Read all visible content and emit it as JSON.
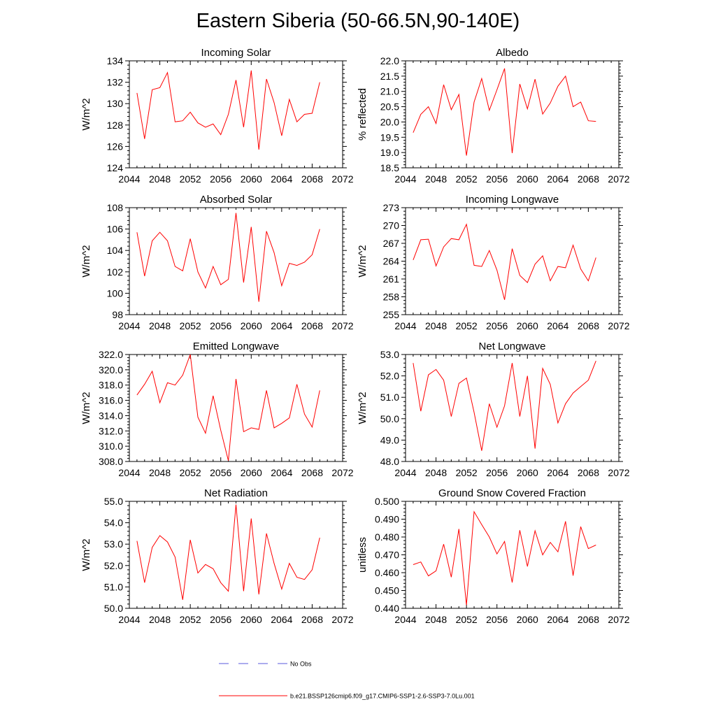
{
  "title": "Eastern Siberia (50-66.5N,90-140E)",
  "legend": {
    "obs_label": "No Obs",
    "obs_color": "#5a5adc",
    "model_label": "b.e21.BSSP126cmip6.f09_g17.CMIP6-SSP1-2.6-SSP3-7.0Lu.001",
    "model_color": "#ff0000"
  },
  "chart_data": [
    {
      "type": "line",
      "title": "Incoming Solar",
      "ylabel": "W/m^2",
      "xlim": [
        2044,
        2072
      ],
      "ylim": [
        124,
        134
      ],
      "xticks": [
        2044,
        2048,
        2052,
        2056,
        2060,
        2064,
        2068,
        2072
      ],
      "yticks": [
        124,
        126,
        128,
        130,
        132,
        134
      ],
      "ytick_labels": [
        "124",
        "126",
        "128",
        "130",
        "132",
        "134"
      ],
      "x": [
        2045,
        2046,
        2047,
        2048,
        2049,
        2050,
        2051,
        2052,
        2053,
        2054,
        2055,
        2056,
        2057,
        2058,
        2059,
        2060,
        2061,
        2062,
        2063,
        2064,
        2065,
        2066,
        2067,
        2068,
        2069
      ],
      "series": [
        {
          "color": "#ff0000",
          "values": [
            131.0,
            126.7,
            131.3,
            131.5,
            132.9,
            128.3,
            128.4,
            129.2,
            128.2,
            127.8,
            128.1,
            127.1,
            129.0,
            132.2,
            127.8,
            133.1,
            125.7,
            132.3,
            130.1,
            127.0,
            130.4,
            128.3,
            129.0,
            129.1,
            132.0
          ]
        }
      ]
    },
    {
      "type": "line",
      "title": "Albedo",
      "ylabel": "% reflected",
      "xlim": [
        2044,
        2072
      ],
      "ylim": [
        18.5,
        22.0
      ],
      "xticks": [
        2044,
        2048,
        2052,
        2056,
        2060,
        2064,
        2068,
        2072
      ],
      "yticks": [
        18.5,
        19.0,
        19.5,
        20.0,
        20.5,
        21.0,
        21.5,
        22.0
      ],
      "ytick_labels": [
        "18.5",
        "19.0",
        "19.5",
        "20.0",
        "20.5",
        "21.0",
        "21.5",
        "22.0"
      ],
      "x": [
        2045,
        2046,
        2047,
        2048,
        2049,
        2050,
        2051,
        2052,
        2053,
        2054,
        2055,
        2056,
        2057,
        2058,
        2059,
        2060,
        2061,
        2062,
        2063,
        2064,
        2065,
        2066,
        2067,
        2068,
        2069
      ],
      "series": [
        {
          "color": "#ff0000",
          "values": [
            19.65,
            20.25,
            20.5,
            19.95,
            21.22,
            20.4,
            20.9,
            18.9,
            20.65,
            21.42,
            20.38,
            21.05,
            21.75,
            18.98,
            21.24,
            20.43,
            21.4,
            20.26,
            20.62,
            21.17,
            21.5,
            20.5,
            20.65,
            20.04,
            20.02
          ]
        }
      ]
    },
    {
      "type": "line",
      "title": "Absorbed Solar",
      "ylabel": "W/m^2",
      "xlim": [
        2044,
        2072
      ],
      "ylim": [
        98,
        108
      ],
      "xticks": [
        2044,
        2048,
        2052,
        2056,
        2060,
        2064,
        2068,
        2072
      ],
      "yticks": [
        98,
        100,
        102,
        104,
        106,
        108
      ],
      "ytick_labels": [
        "98",
        "100",
        "102",
        "104",
        "106",
        "108"
      ],
      "x": [
        2045,
        2046,
        2047,
        2048,
        2049,
        2050,
        2051,
        2052,
        2053,
        2054,
        2055,
        2056,
        2057,
        2058,
        2059,
        2060,
        2061,
        2062,
        2063,
        2064,
        2065,
        2066,
        2067,
        2068,
        2069
      ],
      "series": [
        {
          "color": "#ff0000",
          "values": [
            105.7,
            101.6,
            104.9,
            105.7,
            104.9,
            102.5,
            102.1,
            105.1,
            102.0,
            100.5,
            102.5,
            100.8,
            101.3,
            107.5,
            101.0,
            106.2,
            99.2,
            105.8,
            103.8,
            100.7,
            102.8,
            102.6,
            102.9,
            103.6,
            106.0
          ]
        }
      ]
    },
    {
      "type": "line",
      "title": "Incoming Longwave",
      "ylabel": "W/m^2",
      "xlim": [
        2044,
        2072
      ],
      "ylim": [
        255,
        273
      ],
      "xticks": [
        2044,
        2048,
        2052,
        2056,
        2060,
        2064,
        2068,
        2072
      ],
      "yticks": [
        255,
        258,
        261,
        264,
        267,
        270,
        273
      ],
      "ytick_labels": [
        "255",
        "258",
        "261",
        "264",
        "267",
        "270",
        "273"
      ],
      "x": [
        2045,
        2046,
        2047,
        2048,
        2049,
        2050,
        2051,
        2052,
        2053,
        2054,
        2055,
        2056,
        2057,
        2058,
        2059,
        2060,
        2061,
        2062,
        2063,
        2064,
        2065,
        2066,
        2067,
        2068,
        2069
      ],
      "series": [
        {
          "color": "#ff0000",
          "values": [
            264.2,
            267.6,
            267.7,
            263.2,
            266.4,
            267.8,
            267.6,
            270.2,
            263.3,
            263.1,
            265.8,
            262.5,
            257.5,
            266.1,
            261.6,
            260.4,
            263.5,
            264.9,
            260.7,
            263.1,
            262.9,
            266.7,
            262.7,
            260.7,
            264.6
          ]
        }
      ]
    },
    {
      "type": "line",
      "title": "Emitted Longwave",
      "ylabel": "W/m^2",
      "xlim": [
        2044,
        2072
      ],
      "ylim": [
        308,
        322
      ],
      "xticks": [
        2044,
        2048,
        2052,
        2056,
        2060,
        2064,
        2068,
        2072
      ],
      "yticks": [
        308,
        310,
        312,
        314,
        316,
        318,
        320,
        322
      ],
      "ytick_labels": [
        "308.0",
        "310.0",
        "312.0",
        "314.0",
        "316.0",
        "318.0",
        "320.0",
        "322.0"
      ],
      "x": [
        2045,
        2046,
        2047,
        2048,
        2049,
        2050,
        2051,
        2052,
        2053,
        2054,
        2055,
        2056,
        2057,
        2058,
        2059,
        2060,
        2061,
        2062,
        2063,
        2064,
        2065,
        2066,
        2067,
        2068,
        2069
      ],
      "series": [
        {
          "color": "#ff0000",
          "values": [
            316.7,
            318.1,
            319.8,
            315.7,
            318.3,
            318.0,
            319.3,
            322.0,
            313.8,
            311.7,
            316.6,
            312.1,
            308.1,
            318.8,
            311.9,
            312.4,
            312.2,
            317.3,
            312.4,
            313.0,
            313.7,
            318.1,
            314.2,
            312.5,
            317.3
          ]
        }
      ]
    },
    {
      "type": "line",
      "title": "Net Longwave",
      "ylabel": "W/m^2",
      "xlim": [
        2044,
        2072
      ],
      "ylim": [
        48,
        53
      ],
      "xticks": [
        2044,
        2048,
        2052,
        2056,
        2060,
        2064,
        2068,
        2072
      ],
      "yticks": [
        48,
        49,
        50,
        51,
        52,
        53
      ],
      "ytick_labels": [
        "48.0",
        "49.0",
        "50.0",
        "51.0",
        "52.0",
        "53.0"
      ],
      "x": [
        2045,
        2046,
        2047,
        2048,
        2049,
        2050,
        2051,
        2052,
        2053,
        2054,
        2055,
        2056,
        2057,
        2058,
        2059,
        2060,
        2061,
        2062,
        2063,
        2064,
        2065,
        2066,
        2067,
        2068,
        2069
      ],
      "series": [
        {
          "color": "#ff0000",
          "values": [
            52.6,
            50.35,
            52.05,
            52.3,
            51.8,
            50.1,
            51.65,
            51.9,
            50.3,
            48.5,
            50.7,
            49.6,
            50.6,
            52.6,
            50.1,
            52.0,
            48.6,
            52.35,
            51.6,
            49.8,
            50.7,
            51.2,
            51.5,
            51.8,
            52.7
          ]
        }
      ]
    },
    {
      "type": "line",
      "title": "Net Radiation",
      "ylabel": "W/m^2",
      "xlim": [
        2044,
        2072
      ],
      "ylim": [
        50,
        55
      ],
      "xticks": [
        2044,
        2048,
        2052,
        2056,
        2060,
        2064,
        2068,
        2072
      ],
      "yticks": [
        50,
        51,
        52,
        53,
        54,
        55
      ],
      "ytick_labels": [
        "50.0",
        "51.0",
        "52.0",
        "53.0",
        "54.0",
        "55.0"
      ],
      "x": [
        2045,
        2046,
        2047,
        2048,
        2049,
        2050,
        2051,
        2052,
        2053,
        2054,
        2055,
        2056,
        2057,
        2058,
        2059,
        2060,
        2061,
        2062,
        2063,
        2064,
        2065,
        2066,
        2067,
        2068,
        2069
      ],
      "series": [
        {
          "color": "#ff0000",
          "values": [
            53.15,
            51.2,
            52.85,
            53.4,
            53.1,
            52.4,
            50.4,
            53.2,
            51.65,
            52.05,
            51.85,
            51.2,
            50.8,
            54.85,
            50.8,
            54.2,
            50.65,
            53.5,
            52.1,
            50.9,
            52.1,
            51.45,
            51.35,
            51.8,
            53.3
          ]
        }
      ]
    },
    {
      "type": "line",
      "title": "Ground Snow Covered Fraction",
      "ylabel": "unitless",
      "xlim": [
        2044,
        2072
      ],
      "ylim": [
        0.44,
        0.5
      ],
      "xticks": [
        2044,
        2048,
        2052,
        2056,
        2060,
        2064,
        2068,
        2072
      ],
      "yticks": [
        0.44,
        0.45,
        0.46,
        0.47,
        0.48,
        0.49,
        0.5
      ],
      "ytick_labels": [
        "0.440",
        "0.450",
        "0.460",
        "0.470",
        "0.480",
        "0.490",
        "0.500"
      ],
      "x": [
        2045,
        2046,
        2047,
        2048,
        2049,
        2050,
        2051,
        2052,
        2053,
        2054,
        2055,
        2056,
        2057,
        2058,
        2059,
        2060,
        2061,
        2062,
        2063,
        2064,
        2065,
        2066,
        2067,
        2068,
        2069
      ],
      "series": [
        {
          "color": "#ff0000",
          "values": [
            0.4645,
            0.466,
            0.4582,
            0.461,
            0.476,
            0.4575,
            0.4845,
            0.4418,
            0.4942,
            0.487,
            0.48,
            0.4705,
            0.4775,
            0.4545,
            0.4838,
            0.4635,
            0.4835,
            0.47,
            0.477,
            0.4717,
            0.4888,
            0.4583,
            0.4858,
            0.4735,
            0.4755
          ]
        }
      ]
    }
  ]
}
